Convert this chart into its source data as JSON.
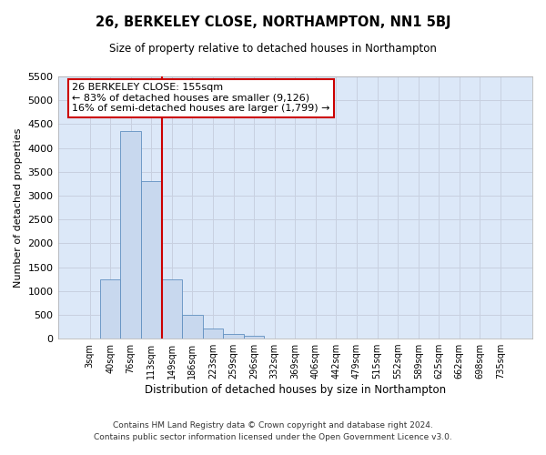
{
  "title": "26, BERKELEY CLOSE, NORTHAMPTON, NN1 5BJ",
  "subtitle": "Size of property relative to detached houses in Northampton",
  "xlabel": "Distribution of detached houses by size in Northampton",
  "ylabel": "Number of detached properties",
  "footer_line1": "Contains HM Land Registry data © Crown copyright and database right 2024.",
  "footer_line2": "Contains public sector information licensed under the Open Government Licence v3.0.",
  "bar_labels": [
    "3sqm",
    "40sqm",
    "76sqm",
    "113sqm",
    "149sqm",
    "186sqm",
    "223sqm",
    "259sqm",
    "296sqm",
    "332sqm",
    "369sqm",
    "406sqm",
    "442sqm",
    "479sqm",
    "515sqm",
    "552sqm",
    "589sqm",
    "625sqm",
    "662sqm",
    "698sqm",
    "735sqm"
  ],
  "bar_values": [
    0,
    1250,
    4350,
    3300,
    1250,
    500,
    220,
    100,
    60,
    0,
    0,
    0,
    0,
    0,
    0,
    0,
    0,
    0,
    0,
    0,
    0
  ],
  "bar_color": "#c8d8ee",
  "bar_edge_color": "#6090c0",
  "grid_color": "#c8d0e0",
  "bg_color": "#dce8f8",
  "annotation_text": "26 BERKELEY CLOSE: 155sqm\n← 83% of detached houses are smaller (9,126)\n16% of semi-detached houses are larger (1,799) →",
  "annotation_box_color": "#ffffff",
  "annotation_box_edge": "#cc0000",
  "vline_x": 3.5,
  "vline_color": "#cc0000",
  "ylim": [
    0,
    5500
  ],
  "yticks": [
    0,
    500,
    1000,
    1500,
    2000,
    2500,
    3000,
    3500,
    4000,
    4500,
    5000,
    5500
  ]
}
